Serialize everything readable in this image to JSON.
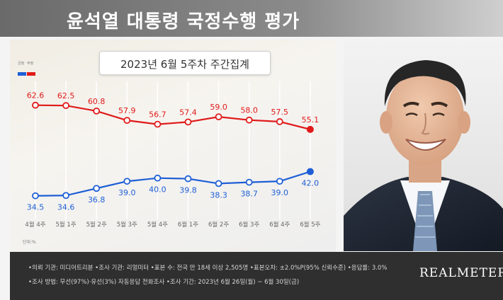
{
  "title": "윤석열 대통령 국정수행 평가",
  "subtitle": "2023년 6월 5주차 주간집계",
  "legend": {
    "approve": "긍정",
    "disapprove": "부정"
  },
  "unit_note": "단위:%",
  "colors": {
    "approve": "#1e5fd6",
    "disapprove": "#e01a1a",
    "footer_bg": "#2f2f2f",
    "header_bg": "#777777"
  },
  "chart_data": {
    "type": "line",
    "categories": [
      "4월 4주",
      "5월 1주",
      "5월 2주",
      "5월 3주",
      "5월 4주",
      "6월 1주",
      "6월 2주",
      "6월 3주",
      "6월 4주",
      "6월 5주"
    ],
    "series": [
      {
        "name": "부정",
        "color": "#e01a1a",
        "values": [
          62.6,
          62.5,
          60.8,
          57.9,
          56.7,
          57.4,
          59.0,
          58.0,
          57.5,
          55.1
        ]
      },
      {
        "name": "긍정",
        "color": "#1e5fd6",
        "values": [
          34.5,
          34.6,
          36.8,
          39.0,
          40.0,
          39.8,
          38.3,
          38.7,
          39.0,
          42.0
        ]
      }
    ],
    "title": "2023년 6월 5주차 주간집계",
    "xlabel": "",
    "ylabel": "",
    "ylim": [
      25,
      70
    ],
    "grid": true
  },
  "footer": {
    "line1": "•의뢰 기관: 미디어트리뷴 •조사 기관: 리얼미터 •표본 수: 전국 만 18세 이상 2,505명 •표본오차: ±2.0%P(95% 신뢰수준) •응답률: 3.0%",
    "line2": "•조사 방법: 무선(97%)·유선(3%) 자동응답 전화조사 •조사 기간: 2023년 6월 26일(월) ~ 6월 30일(금)",
    "brand": "REALMETER"
  }
}
